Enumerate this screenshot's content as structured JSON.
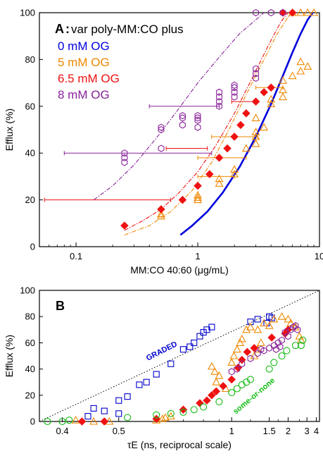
{
  "chart_data": [
    {
      "panel": "A",
      "type": "scatter",
      "title": "var poly-MM:CO plus",
      "panel_label": "A",
      "xlabel": "MM:CO 40:60 (μg/mL)",
      "ylabel": "Efflux (%)",
      "xscale": "log",
      "xlim": [
        0.05,
        10
      ],
      "ylim": [
        0,
        100
      ],
      "xticks": [
        {
          "v": 0.1,
          "label": "0.1"
        },
        {
          "v": 1,
          "label": "1"
        },
        {
          "v": 10,
          "label": "10"
        }
      ],
      "yticks": [
        0,
        20,
        40,
        60,
        80,
        100
      ],
      "legend_position": "top-left",
      "series": [
        {
          "name": "0 mM OG",
          "color": "#0000dd",
          "marker": "none",
          "fit": [
            [
              0.72,
              5
            ],
            [
              0.9,
              9
            ],
            [
              1.2,
              15
            ],
            [
              1.6,
              23
            ],
            [
              2.2,
              34
            ],
            [
              3.0,
              47
            ],
            [
              4.0,
              61
            ],
            [
              5.0,
              73
            ],
            [
              6.0,
              83
            ],
            [
              7.0,
              91
            ],
            [
              8.0,
              97
            ],
            [
              8.8,
              100
            ]
          ],
          "points": []
        },
        {
          "name": "5 mM OG",
          "color": "#ee8800",
          "marker": "triangle",
          "fit": [
            [
              0.25,
              5
            ],
            [
              0.4,
              9
            ],
            [
              0.6,
              15
            ],
            [
              0.9,
              24
            ],
            [
              1.3,
              36
            ],
            [
              1.8,
              50
            ],
            [
              2.5,
              65
            ],
            [
              3.5,
              80
            ],
            [
              4.5,
              91
            ],
            [
              5.5,
              98
            ],
            [
              6.3,
              100
            ]
          ],
          "points": [
            [
              0.5,
              13
            ],
            [
              0.5,
              14
            ],
            [
              1,
              20
            ],
            [
              1,
              21
            ],
            [
              1,
              22
            ],
            [
              1.5,
              27
            ],
            [
              1.5,
              29
            ],
            [
              2,
              31
            ],
            [
              2,
              33
            ],
            [
              2.5,
              42
            ],
            [
              3,
              44
            ],
            [
              3,
              47
            ],
            [
              3,
              49
            ],
            [
              3,
              55
            ],
            [
              3.5,
              51
            ],
            [
              4,
              61
            ],
            [
              4,
              63
            ],
            [
              5,
              64
            ],
            [
              5,
              67
            ],
            [
              5,
              71
            ],
            [
              6,
              73
            ],
            [
              7,
              75
            ],
            [
              7,
              79
            ],
            [
              8,
              77
            ],
            [
              6,
              100
            ],
            [
              7,
              100
            ],
            [
              8,
              100
            ],
            [
              9,
              100
            ]
          ],
          "hbars": [
            {
              "y": 30,
              "xmin": 1.0,
              "xmax": 2.0
            },
            {
              "y": 38,
              "xmin": 1.0,
              "xmax": 2.5
            },
            {
              "y": 47,
              "xmin": 1.3,
              "xmax": 3.1
            },
            {
              "y": 68,
              "xmin": 3.0,
              "xmax": 5.0
            }
          ]
        },
        {
          "name": "6.5 mM OG",
          "color": "#ee1111",
          "marker": "diamond",
          "fit": [
            [
              0.25,
              7
            ],
            [
              0.35,
              11
            ],
            [
              0.5,
              16
            ],
            [
              0.7,
              23
            ],
            [
              1.0,
              32
            ],
            [
              1.4,
              43
            ],
            [
              2.0,
              57
            ],
            [
              2.8,
              72
            ],
            [
              3.8,
              86
            ],
            [
              4.8,
              96
            ],
            [
              5.5,
              100
            ]
          ],
          "points": [
            [
              0.25,
              9
            ],
            [
              0.5,
              16
            ],
            [
              0.75,
              20
            ],
            [
              1,
              26
            ],
            [
              1.25,
              31
            ],
            [
              1.5,
              38
            ],
            [
              1.75,
              42
            ],
            [
              2,
              47
            ],
            [
              2.25,
              52
            ],
            [
              2.5,
              57
            ],
            [
              3,
              62
            ],
            [
              3.5,
              66
            ],
            [
              4,
              68
            ],
            [
              5,
              100
            ],
            [
              6,
              100
            ]
          ],
          "hbars": [
            {
              "y": 20,
              "xmin": 0.055,
              "xmax": 0.6
            },
            {
              "y": 42,
              "xmin": 0.55,
              "xmax": 1.2
            },
            {
              "y": 62,
              "xmin": 1.9,
              "xmax": 2.9
            }
          ]
        },
        {
          "name": "8 mM OG",
          "color": "#882299",
          "marker": "hexagon",
          "fit": [
            [
              0.14,
              20
            ],
            [
              0.2,
              26
            ],
            [
              0.3,
              35
            ],
            [
              0.45,
              46
            ],
            [
              0.7,
              59
            ],
            [
              1.0,
              70
            ],
            [
              1.5,
              81
            ],
            [
              2.2,
              91
            ],
            [
              3.0,
              97
            ],
            [
              3.5,
              100
            ]
          ],
          "points": [
            [
              0.25,
              36
            ],
            [
              0.25,
              38
            ],
            [
              0.25,
              40
            ],
            [
              0.5,
              42
            ],
            [
              0.5,
              50
            ],
            [
              0.5,
              51
            ],
            [
              0.75,
              52
            ],
            [
              0.75,
              55
            ],
            [
              0.75,
              56
            ],
            [
              1,
              51
            ],
            [
              1,
              54
            ],
            [
              1,
              55
            ],
            [
              1,
              56
            ],
            [
              1.5,
              60
            ],
            [
              1.5,
              62
            ],
            [
              1.5,
              64
            ],
            [
              1.5,
              66
            ],
            [
              2,
              64
            ],
            [
              2,
              66
            ],
            [
              2,
              68
            ],
            [
              2,
              69
            ],
            [
              3,
              72
            ],
            [
              3,
              74
            ],
            [
              3,
              76
            ],
            [
              3,
              100
            ],
            [
              4,
              100
            ],
            [
              5,
              100
            ]
          ],
          "hbars": [
            {
              "y": 40,
              "xmin": 0.08,
              "xmax": 1.3
            },
            {
              "y": 60,
              "xmin": 0.4,
              "xmax": 1.5
            }
          ]
        }
      ]
    },
    {
      "panel": "B",
      "type": "scatter",
      "panel_label": "B",
      "xlabel": "τE (ns, reciprocal scale)",
      "ylabel": "Efflux (%)",
      "xscale": "reciprocal",
      "xlim": [
        0.37,
        4.5
      ],
      "ylim": [
        0,
        100
      ],
      "xticks": [
        {
          "v": 0.4,
          "label": "0.4"
        },
        {
          "v": 0.5,
          "label": "0.5"
        },
        {
          "v": 1,
          "label": "1"
        },
        {
          "v": 1.5,
          "label": "1.5"
        },
        {
          "v": 2,
          "label": "2"
        },
        {
          "v": 3,
          "label": "3"
        },
        {
          "v": 4,
          "label": "4"
        }
      ],
      "yticks": [
        0,
        20,
        40,
        60,
        80,
        100
      ],
      "annotations": [
        {
          "text": "GRADED",
          "color": "#0000cc"
        },
        {
          "text": "some-or-none",
          "color": "#11bb11"
        }
      ],
      "reference_line": {
        "style": "dotted",
        "from": [
          0.37,
          0
        ],
        "to": [
          4.5,
          100
        ]
      },
      "series": [
        {
          "name": "blue",
          "color": "#0000cc",
          "marker": "square",
          "points": [
            [
              0.45,
              10
            ],
            [
              0.47,
              8
            ],
            [
              0.5,
              16
            ],
            [
              0.52,
              19
            ],
            [
              0.55,
              28
            ],
            [
              0.57,
              30
            ],
            [
              0.6,
              36
            ],
            [
              0.65,
              44
            ],
            [
              0.7,
              55
            ],
            [
              0.73,
              57
            ],
            [
              0.75,
              60
            ],
            [
              0.78,
              65
            ],
            [
              0.8,
              68
            ],
            [
              0.82,
              70
            ],
            [
              0.85,
              72
            ],
            [
              0.44,
              4
            ],
            [
              0.5,
              6
            ],
            [
              1.3,
              78
            ],
            [
              1.5,
              80
            ],
            [
              1.55,
              79
            ],
            [
              1.45,
              75
            ],
            [
              1.2,
              76
            ]
          ]
        },
        {
          "name": "orange",
          "color": "#ee8800",
          "marker": "triangle",
          "points": [
            [
              0.42,
              1
            ],
            [
              0.45,
              0
            ],
            [
              0.48,
              0
            ],
            [
              0.6,
              1
            ],
            [
              0.62,
              2
            ],
            [
              0.63,
              3
            ],
            [
              0.65,
              4
            ],
            [
              0.85,
              42
            ],
            [
              0.87,
              38
            ],
            [
              0.88,
              30
            ],
            [
              0.9,
              35
            ],
            [
              0.95,
              25
            ],
            [
              1.0,
              45
            ],
            [
              1.02,
              50
            ],
            [
              1.05,
              55
            ],
            [
              1.08,
              60
            ],
            [
              1.1,
              63
            ],
            [
              1.15,
              70
            ],
            [
              1.2,
              72
            ],
            [
              1.3,
              70
            ],
            [
              1.4,
              75
            ],
            [
              1.5,
              73
            ],
            [
              1.6,
              78
            ],
            [
              1.8,
              80
            ],
            [
              2.0,
              78
            ],
            [
              2.1,
              75
            ],
            [
              2.3,
              72
            ],
            [
              2.5,
              65
            ],
            [
              2.6,
              62
            ],
            [
              1.25,
              50
            ],
            [
              1.3,
              55
            ],
            [
              1.35,
              60
            ]
          ]
        },
        {
          "name": "red",
          "color": "#ee1111",
          "marker": "diamond",
          "points": [
            [
              0.43,
              0
            ],
            [
              0.47,
              0
            ],
            [
              0.6,
              2
            ],
            [
              0.7,
              9
            ],
            [
              0.78,
              14
            ],
            [
              0.82,
              16
            ],
            [
              0.85,
              20
            ],
            [
              0.88,
              23
            ],
            [
              0.93,
              27
            ],
            [
              1.0,
              32
            ],
            [
              1.06,
              41
            ],
            [
              1.1,
              47
            ],
            [
              1.16,
              53
            ],
            [
              1.25,
              56
            ],
            [
              1.55,
              64
            ],
            [
              1.9,
              67
            ],
            [
              2.0,
              70
            ]
          ]
        },
        {
          "name": "purple",
          "color": "#882299",
          "marker": "hexagon",
          "points": [
            [
              1.0,
              38
            ],
            [
              1.05,
              40
            ],
            [
              1.1,
              44
            ],
            [
              1.2,
              48
            ],
            [
              1.3,
              52
            ],
            [
              1.35,
              55
            ],
            [
              1.4,
              54
            ],
            [
              1.5,
              56
            ],
            [
              1.6,
              58
            ],
            [
              1.7,
              60
            ],
            [
              1.8,
              62
            ],
            [
              2.0,
              65
            ],
            [
              2.1,
              70
            ],
            [
              2.2,
              72
            ],
            [
              2.3,
              73
            ],
            [
              2.4,
              70
            ],
            [
              1.9,
              68
            ],
            [
              1.65,
              55
            ],
            [
              1.75,
              57
            ]
          ]
        },
        {
          "name": "green",
          "color": "#11bb11",
          "marker": "circle",
          "points": [
            [
              0.38,
              0
            ],
            [
              0.4,
              0
            ],
            [
              0.41,
              1
            ],
            [
              0.52,
              3
            ],
            [
              0.6,
              5
            ],
            [
              0.65,
              6
            ],
            [
              0.7,
              7
            ],
            [
              0.75,
              9
            ],
            [
              0.8,
              11
            ],
            [
              0.9,
              15
            ],
            [
              1.0,
              22
            ],
            [
              1.05,
              25
            ],
            [
              1.1,
              28
            ],
            [
              1.15,
              30
            ],
            [
              1.2,
              32
            ],
            [
              1.5,
              40
            ],
            [
              1.6,
              45
            ],
            [
              1.8,
              50
            ],
            [
              1.95,
              54
            ],
            [
              2.3,
              58
            ],
            [
              2.7,
              62
            ],
            [
              2.6,
              58
            ]
          ]
        }
      ]
    }
  ]
}
